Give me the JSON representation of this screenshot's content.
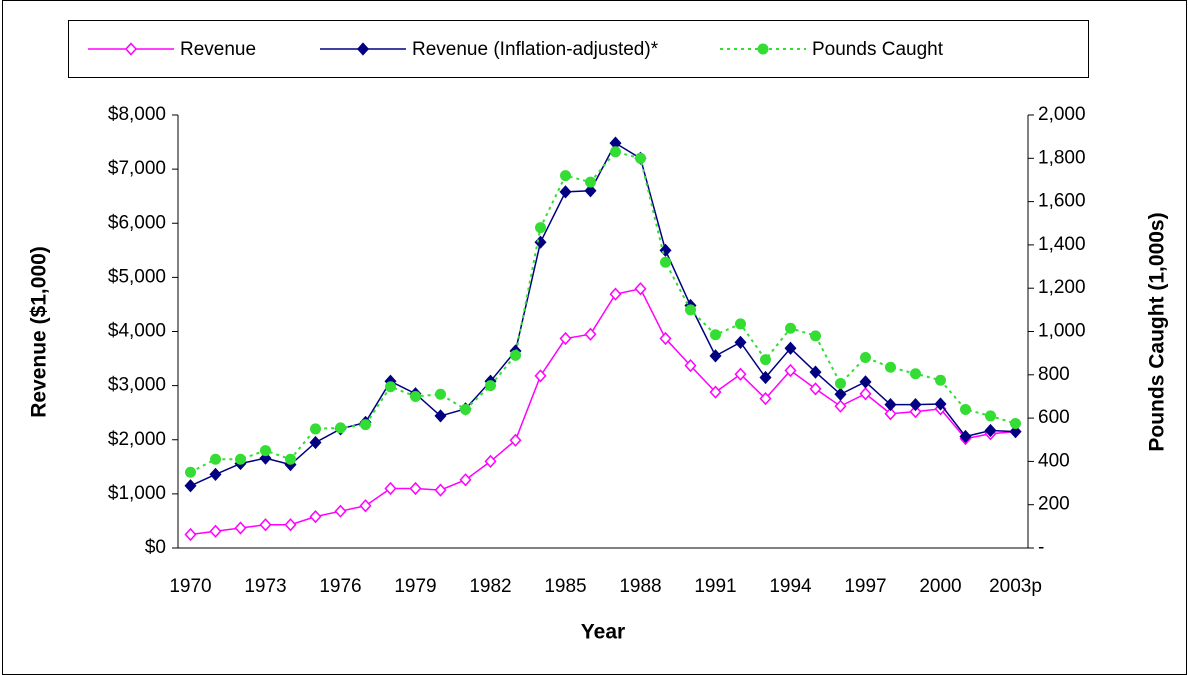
{
  "chart_data": {
    "type": "line",
    "x_label": "Year",
    "y_label": "Revenue ($1,000)",
    "y2_label": "Pounds Caught (1,000s)",
    "legend": "top",
    "categories": [
      "1970",
      null,
      null,
      "1973",
      null,
      null,
      "1976",
      null,
      null,
      "1979",
      null,
      null,
      "1982",
      null,
      null,
      "1985",
      null,
      null,
      "1988",
      null,
      null,
      "1991",
      null,
      null,
      "1994",
      null,
      null,
      "1997",
      null,
      null,
      "2000",
      null,
      null,
      "2003p"
    ],
    "ylim": [
      0,
      8000
    ],
    "yticks": [
      {
        "value": 0,
        "label": "$0"
      },
      {
        "value": 1000,
        "label": "$1,000"
      },
      {
        "value": 2000,
        "label": "$2,000"
      },
      {
        "value": 3000,
        "label": "$3,000"
      },
      {
        "value": 4000,
        "label": "$4,000"
      },
      {
        "value": 5000,
        "label": "$5,000"
      },
      {
        "value": 6000,
        "label": "$6,000"
      },
      {
        "value": 7000,
        "label": "$7,000"
      },
      {
        "value": 8000,
        "label": "$8,000"
      }
    ],
    "y2lim": [
      0,
      2000
    ],
    "y2ticks": [
      {
        "value": 0,
        "label": "-"
      },
      200,
      400,
      600,
      800,
      {
        "value": 1000,
        "label": "1,000"
      },
      {
        "value": 1200,
        "label": "1,200"
      },
      {
        "value": 1400,
        "label": "1,400"
      },
      {
        "value": 1600,
        "label": "1,600"
      },
      {
        "value": 1800,
        "label": "1,800"
      },
      {
        "value": 2000,
        "label": "2,000"
      }
    ],
    "series": [
      {
        "name": "Revenue",
        "color": "#ff00ff",
        "marker": "diamond-open",
        "dash": false,
        "values": [
          250,
          310,
          370,
          430,
          430,
          580,
          680,
          780,
          1100,
          1100,
          1070,
          1260,
          1600,
          1990,
          3180,
          3870,
          3950,
          4690,
          4790,
          3870,
          3370,
          2880,
          3210,
          2760,
          3280,
          2940,
          2620,
          2850,
          2480,
          2520,
          2570,
          2020,
          2110,
          2150
        ]
      },
      {
        "name": "Revenue (Inflation-adjusted)*",
        "color": "#000080",
        "marker": "diamond",
        "dash": false,
        "values": [
          1150,
          1360,
          1560,
          1660,
          1540,
          1950,
          2200,
          2320,
          3080,
          2850,
          2440,
          2570,
          3080,
          3640,
          5650,
          6580,
          6600,
          7480,
          7200,
          5500,
          4480,
          3550,
          3800,
          3150,
          3690,
          3250,
          2840,
          3070,
          2650,
          2650,
          2660,
          2060,
          2170,
          2150
        ]
      },
      {
        "name": "Pounds Caught",
        "color": "#33dd33",
        "marker": "circle",
        "dash": true,
        "axis": "y2",
        "values": [
          350,
          410,
          410,
          450,
          410,
          550,
          555,
          570,
          745,
          700,
          710,
          640,
          750,
          890,
          1480,
          1720,
          1690,
          1830,
          1800,
          1320,
          1100,
          985,
          1035,
          870,
          1015,
          980,
          760,
          880,
          835,
          805,
          775,
          640,
          610,
          575
        ]
      }
    ]
  }
}
